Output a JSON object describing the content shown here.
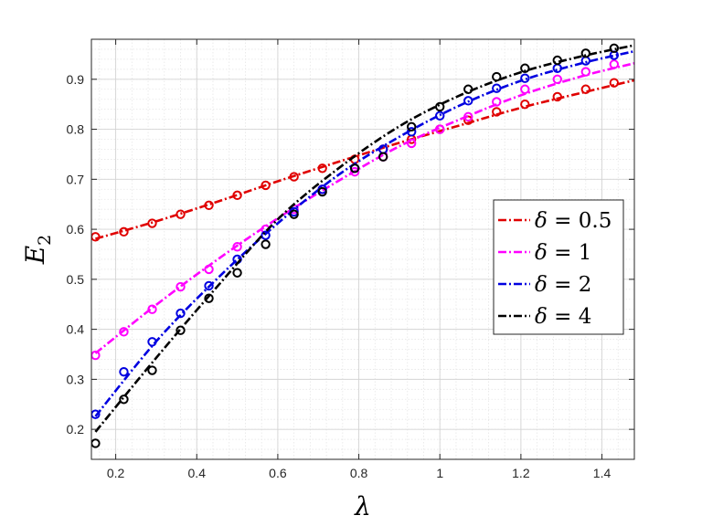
{
  "chart_data": {
    "type": "line",
    "xlabel": "λ",
    "ylabel": "E",
    "ylabel_subscript": "2",
    "xlim": [
      0.14,
      1.48
    ],
    "ylim": [
      0.14,
      0.98
    ],
    "xticks": [
      0.2,
      0.4,
      0.6,
      0.8,
      1.0,
      1.2,
      1.4
    ],
    "xtick_labels": [
      "0.2",
      "0.4",
      "0.6",
      "0.8",
      "1",
      "1.2",
      "1.4"
    ],
    "yticks": [
      0.2,
      0.3,
      0.4,
      0.5,
      0.6,
      0.7,
      0.8,
      0.9
    ],
    "ytick_labels": [
      "0.2",
      "0.3",
      "0.4",
      "0.5",
      "0.6",
      "0.7",
      "0.8",
      "0.9"
    ],
    "grid": true,
    "minor_grid": true,
    "legend_position": "center-right",
    "series": [
      {
        "name": "δ = 0.5",
        "legend_symbol": "δ",
        "legend_value": "= 0.5",
        "color": "#e00000",
        "line": {
          "x": [
            0.15,
            0.3,
            0.45,
            0.6,
            0.75,
            0.9,
            1.05,
            1.2,
            1.35,
            1.48
          ],
          "y": [
            0.581,
            0.616,
            0.655,
            0.696,
            0.735,
            0.773,
            0.808,
            0.843,
            0.873,
            0.898
          ]
        },
        "markers": {
          "x": [
            0.15,
            0.22,
            0.29,
            0.36,
            0.43,
            0.5,
            0.57,
            0.64,
            0.71,
            0.79,
            0.86,
            0.93,
            1.0,
            1.07,
            1.14,
            1.21,
            1.29,
            1.36,
            1.43
          ],
          "y": [
            0.585,
            0.595,
            0.612,
            0.63,
            0.648,
            0.668,
            0.688,
            0.705,
            0.722,
            0.74,
            0.76,
            0.78,
            0.8,
            0.818,
            0.835,
            0.85,
            0.865,
            0.88,
            0.893
          ]
        }
      },
      {
        "name": "δ = 1",
        "legend_symbol": "δ",
        "legend_value": "= 1",
        "color": "#ff00ff",
        "line": {
          "x": [
            0.15,
            0.3,
            0.45,
            0.6,
            0.75,
            0.9,
            1.05,
            1.2,
            1.35,
            1.48
          ],
          "y": [
            0.352,
            0.449,
            0.539,
            0.622,
            0.697,
            0.766,
            0.82,
            0.868,
            0.906,
            0.932
          ]
        },
        "markers": {
          "x": [
            0.15,
            0.22,
            0.29,
            0.36,
            0.43,
            0.5,
            0.57,
            0.64,
            0.71,
            0.79,
            0.86,
            0.93,
            1.0,
            1.07,
            1.14,
            1.21,
            1.29,
            1.36,
            1.43
          ],
          "y": [
            0.348,
            0.395,
            0.44,
            0.485,
            0.52,
            0.565,
            0.6,
            0.64,
            0.68,
            0.715,
            0.745,
            0.772,
            0.8,
            0.825,
            0.855,
            0.88,
            0.9,
            0.915,
            0.93
          ]
        }
      },
      {
        "name": "δ = 2",
        "legend_symbol": "δ",
        "legend_value": "= 2",
        "color": "#0000e0",
        "line": {
          "x": [
            0.15,
            0.3,
            0.45,
            0.6,
            0.75,
            0.9,
            1.05,
            1.2,
            1.35,
            1.48
          ],
          "y": [
            0.226,
            0.376,
            0.501,
            0.612,
            0.709,
            0.785,
            0.848,
            0.897,
            0.932,
            0.956
          ]
        },
        "markers": {
          "x": [
            0.15,
            0.22,
            0.29,
            0.36,
            0.43,
            0.5,
            0.57,
            0.64,
            0.71,
            0.79,
            0.86,
            0.93,
            1.0,
            1.07,
            1.14,
            1.21,
            1.29,
            1.36,
            1.43
          ],
          "y": [
            0.23,
            0.315,
            0.375,
            0.432,
            0.487,
            0.54,
            0.588,
            0.635,
            0.68,
            0.722,
            0.76,
            0.795,
            0.827,
            0.857,
            0.882,
            0.902,
            0.922,
            0.937,
            0.948
          ]
        }
      },
      {
        "name": "δ = 4",
        "legend_symbol": "δ",
        "legend_value": "= 4",
        "color": "#000000",
        "line": {
          "x": [
            0.15,
            0.3,
            0.45,
            0.6,
            0.75,
            0.9,
            1.05,
            1.2,
            1.35,
            1.48
          ],
          "y": [
            0.195,
            0.343,
            0.485,
            0.62,
            0.722,
            0.806,
            0.868,
            0.914,
            0.946,
            0.968
          ]
        },
        "markers": {
          "x": [
            0.15,
            0.22,
            0.29,
            0.36,
            0.43,
            0.5,
            0.57,
            0.64,
            0.71,
            0.79,
            0.86,
            0.93,
            1.0,
            1.07,
            1.14,
            1.21,
            1.29,
            1.36,
            1.43
          ],
          "y": [
            0.172,
            0.26,
            0.318,
            0.398,
            0.462,
            0.513,
            0.57,
            0.63,
            0.675,
            0.722,
            0.745,
            0.805,
            0.845,
            0.88,
            0.905,
            0.922,
            0.938,
            0.952,
            0.962
          ]
        }
      }
    ]
  }
}
